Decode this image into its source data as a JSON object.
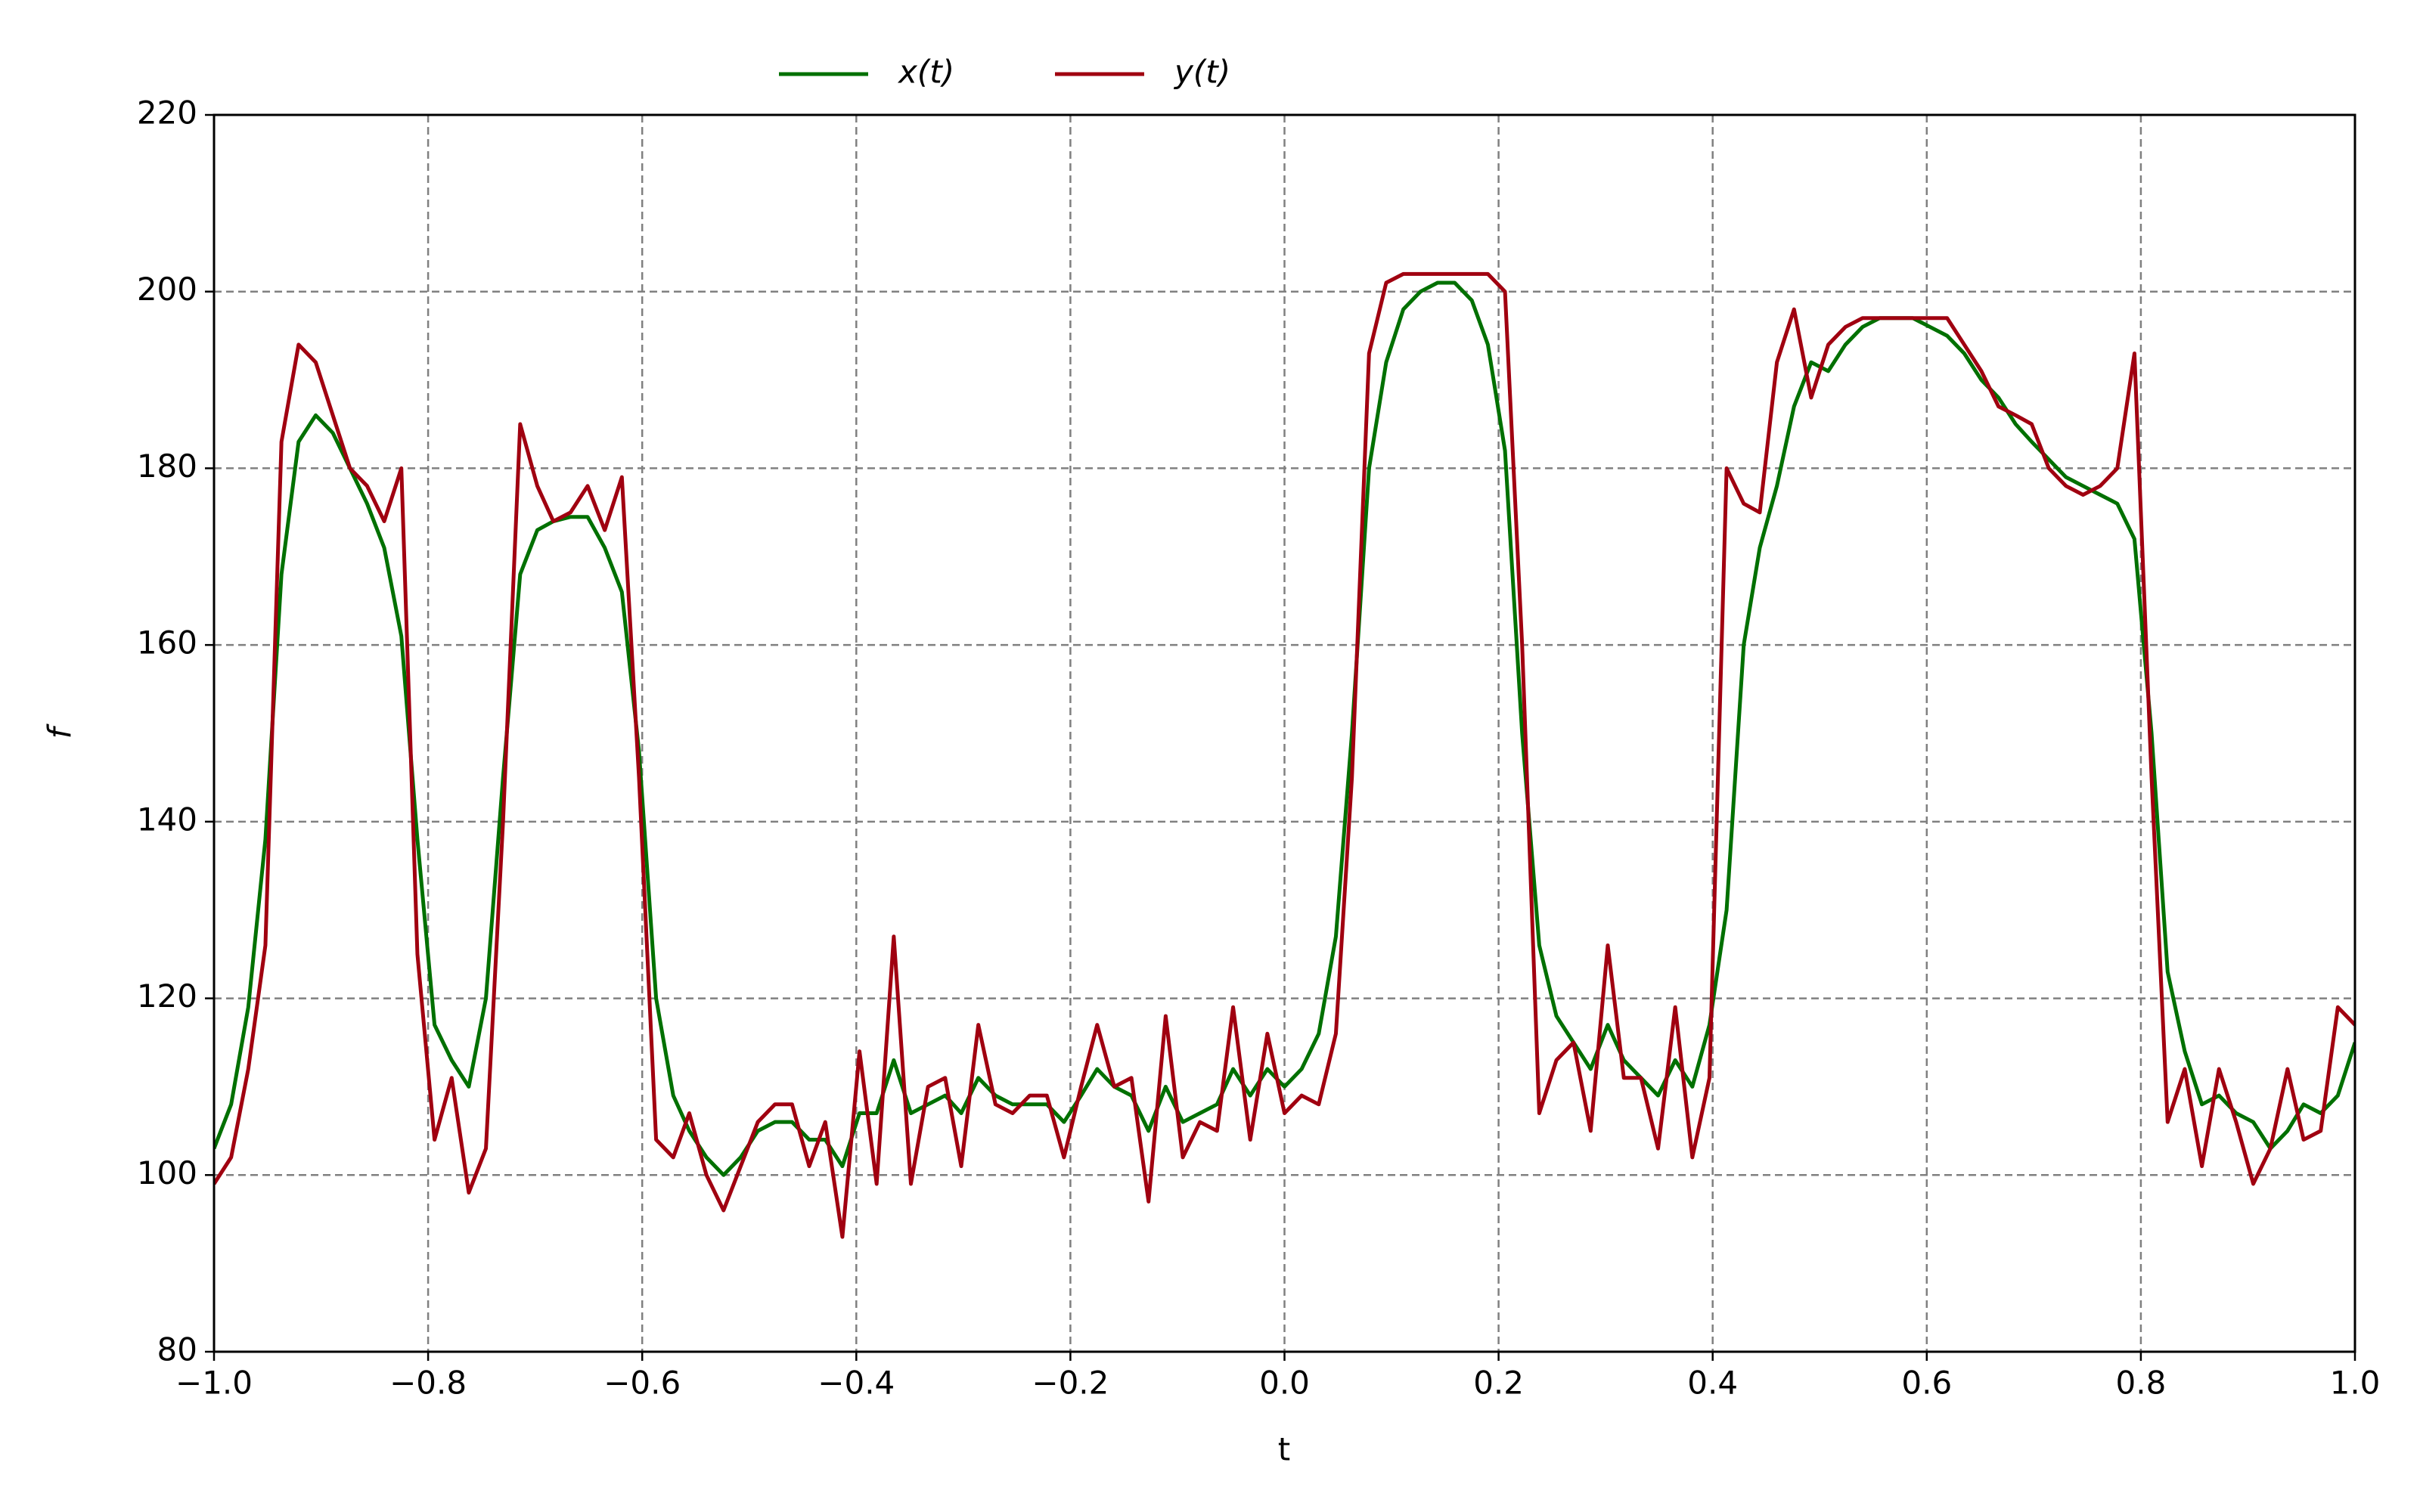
{
  "chart_data": {
    "type": "line",
    "xlabel": "t",
    "ylabel": "f",
    "x": [
      -1.0,
      -0.984,
      -0.968,
      -0.952,
      -0.937,
      -0.921,
      -0.905,
      -0.889,
      -0.873,
      -0.857,
      -0.841,
      -0.825,
      -0.81,
      -0.794,
      -0.778,
      -0.762,
      -0.746,
      -0.73,
      -0.714,
      -0.698,
      -0.683,
      -0.667,
      -0.651,
      -0.635,
      -0.619,
      -0.603,
      -0.587,
      -0.571,
      -0.556,
      -0.54,
      -0.524,
      -0.508,
      -0.492,
      -0.476,
      -0.46,
      -0.444,
      -0.429,
      -0.413,
      -0.397,
      -0.381,
      -0.365,
      -0.349,
      -0.333,
      -0.317,
      -0.302,
      -0.286,
      -0.27,
      -0.254,
      -0.238,
      -0.222,
      -0.206,
      -0.19,
      -0.175,
      -0.159,
      -0.143,
      -0.127,
      -0.111,
      -0.095,
      -0.079,
      -0.063,
      -0.048,
      -0.032,
      -0.016,
      0,
      0.016,
      0.032,
      0.048,
      0.063,
      0.079,
      0.095,
      0.111,
      0.127,
      0.143,
      0.159,
      0.175,
      0.19,
      0.206,
      0.222,
      0.238,
      0.254,
      0.27,
      0.286,
      0.302,
      0.317,
      0.333,
      0.349,
      0.365,
      0.381,
      0.397,
      0.413,
      0.429,
      0.444,
      0.46,
      0.476,
      0.492,
      0.508,
      0.524,
      0.54,
      0.556,
      0.571,
      0.587,
      0.603,
      0.619,
      0.635,
      0.651,
      0.667,
      0.683,
      0.698,
      0.714,
      0.73,
      0.746,
      0.762,
      0.778,
      0.794,
      0.81,
      0.825,
      0.841,
      0.857,
      0.873,
      0.889,
      0.905,
      0.921,
      0.937,
      0.952,
      0.968,
      0.984,
      1.0
    ],
    "series": [
      {
        "name": "x(t)",
        "color": "#007000",
        "values": [
          103,
          108,
          119,
          138,
          168,
          183,
          186,
          184,
          180,
          176,
          171,
          161,
          138,
          117,
          113,
          110,
          120,
          145,
          168,
          173,
          174,
          174.5,
          174.5,
          171,
          166,
          148,
          120,
          109,
          105,
          102,
          100,
          102,
          105,
          106,
          106,
          104,
          104,
          101,
          107,
          107,
          113,
          107,
          108,
          109,
          107,
          111,
          109,
          108,
          108,
          108,
          106,
          109,
          112,
          110,
          109,
          105,
          110,
          106,
          107,
          108,
          112,
          109,
          112,
          110,
          112,
          116,
          127,
          150,
          180,
          192,
          198,
          200,
          201,
          201,
          199,
          194,
          182,
          150,
          126,
          118,
          115,
          112,
          117,
          113,
          111,
          109,
          113,
          110,
          117,
          130,
          160,
          171,
          178,
          187,
          192,
          191,
          194,
          196,
          197,
          197,
          197,
          196,
          195,
          193,
          190,
          188,
          185,
          183,
          181,
          179,
          178,
          177,
          176,
          172,
          150,
          123,
          114,
          108,
          109,
          107,
          106,
          103,
          105,
          108,
          107,
          109,
          115
        ]
      },
      {
        "name": "y(t)",
        "color": "#a00010",
        "values": [
          99,
          102,
          112,
          126,
          183,
          194,
          192,
          186,
          180,
          178,
          174,
          180,
          125,
          104,
          111,
          98,
          103,
          140,
          185,
          178,
          174,
          175,
          178,
          173,
          179,
          145,
          104,
          102,
          107,
          100,
          96,
          101,
          106,
          108,
          108,
          101,
          106,
          93,
          114,
          99,
          127,
          99,
          110,
          111,
          101,
          117,
          108,
          107,
          109,
          109,
          102,
          110,
          117,
          110,
          111,
          97,
          118,
          102,
          106,
          105,
          119,
          104,
          116,
          107,
          109,
          108,
          116,
          145,
          193,
          201,
          202,
          202,
          202,
          202,
          202,
          202,
          200,
          160,
          107,
          113,
          115,
          105,
          126,
          111,
          111,
          103,
          119,
          102,
          111,
          180,
          176,
          175,
          192,
          198,
          188,
          194,
          196,
          197,
          197,
          197,
          197,
          197,
          197,
          194,
          191,
          187,
          186,
          185,
          180,
          178,
          177,
          178,
          180,
          193,
          145,
          106,
          112,
          101,
          112,
          106,
          99,
          103,
          112,
          104,
          105,
          119,
          117
        ]
      }
    ],
    "xlim": [
      -1.0,
      1.0
    ],
    "xticks": [
      {
        "value": -1.0,
        "label": "−1.0"
      },
      {
        "value": -0.8,
        "label": "−0.8"
      },
      {
        "value": -0.6,
        "label": "−0.6"
      },
      {
        "value": -0.4,
        "label": "−0.4"
      },
      {
        "value": -0.2,
        "label": "−0.2"
      },
      {
        "value": 0,
        "label": "0.0"
      },
      0.2,
      0.4,
      0.6,
      0.8,
      {
        "value": 1.0,
        "label": "1.0"
      }
    ],
    "ylim": [
      80,
      220
    ],
    "yticks": [
      80,
      100,
      120,
      140,
      160,
      180,
      200,
      220
    ],
    "grid": true,
    "legend": "top"
  }
}
